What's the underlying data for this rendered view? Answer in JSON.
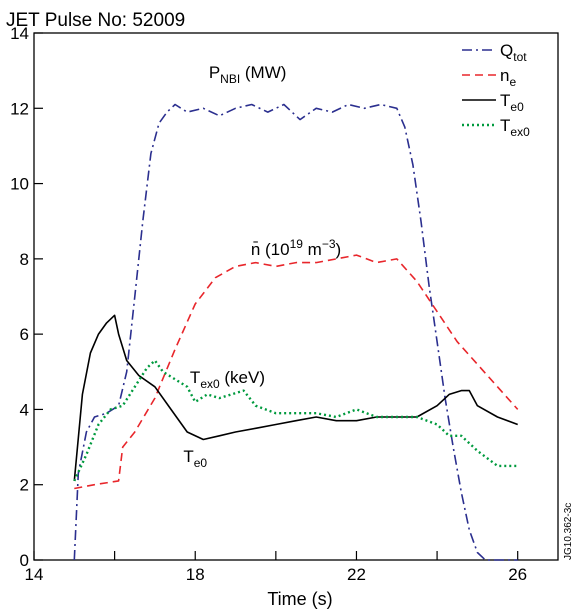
{
  "chart_data": {
    "type": "line",
    "title": "JET Pulse No: 52009",
    "xlabel": "Time (s)",
    "ylabel": "",
    "xlim": [
      14,
      27
    ],
    "ylim": [
      0,
      14
    ],
    "x_ticks": [
      14,
      18,
      22,
      26
    ],
    "x_minor_ticks": [
      16,
      20,
      24
    ],
    "y_ticks": [
      0,
      2,
      4,
      6,
      8,
      10,
      12,
      14
    ],
    "grid": false,
    "legend_position": "top-right",
    "figure_code": "JG10.362-3c",
    "legend": [
      {
        "main": "Q",
        "sub": "tot",
        "color": "#2b2f8f",
        "dash": "dashdot"
      },
      {
        "main": "n",
        "sub": "e",
        "color": "#e8262b",
        "dash": "dashed"
      },
      {
        "main": "T",
        "sub": "e0",
        "color": "#000000",
        "dash": "solid"
      },
      {
        "main": "T",
        "sub": "ex0",
        "color": "#009a3e",
        "dash": "dotted"
      }
    ],
    "annotations": [
      {
        "main": "P",
        "sub": "NBI",
        "rest": " (MW)",
        "x": 19.3,
        "y": 12.8
      },
      {
        "main": "n̄",
        "sup": "19",
        "pre": " (10",
        "rest": " m",
        "sup2": "−3",
        "end": ")",
        "x": 20.5,
        "y": 8.1
      },
      {
        "main": "T",
        "sub": "ex0",
        "rest": " (keV)",
        "x": 18.8,
        "y": 4.7
      },
      {
        "main": "T",
        "sub": "e0",
        "rest": "",
        "x": 18.0,
        "y": 2.6
      }
    ],
    "series": [
      {
        "name": "Qtot",
        "color": "#2b2f8f",
        "dash": "dashdot",
        "x": [
          15.0,
          15.1,
          15.3,
          15.5,
          15.8,
          16.1,
          16.3,
          16.5,
          16.7,
          16.9,
          17.1,
          17.3,
          17.5,
          17.8,
          18.2,
          18.6,
          19.0,
          19.4,
          19.8,
          20.2,
          20.6,
          21.0,
          21.4,
          21.8,
          22.2,
          22.6,
          23.0,
          23.2,
          23.4,
          23.6,
          23.8,
          24.0,
          24.2,
          24.4,
          24.6,
          24.8,
          25.0,
          25.2,
          26.0
        ],
        "y": [
          0.0,
          2.3,
          3.4,
          3.8,
          3.9,
          4.1,
          5.0,
          7.0,
          9.0,
          10.8,
          11.6,
          11.9,
          12.1,
          11.9,
          12.0,
          11.8,
          12.0,
          12.1,
          11.9,
          12.1,
          11.7,
          12.0,
          11.9,
          12.1,
          12.0,
          12.1,
          12.0,
          11.5,
          10.5,
          9.0,
          7.3,
          5.8,
          4.3,
          3.0,
          1.8,
          0.8,
          0.2,
          0.0,
          0.0
        ]
      },
      {
        "name": "ne",
        "color": "#e8262b",
        "dash": "dashed",
        "x": [
          15.0,
          15.5,
          16.1,
          16.2,
          16.5,
          17.0,
          17.5,
          18.0,
          18.5,
          19.0,
          19.5,
          20.0,
          20.5,
          21.0,
          21.5,
          22.0,
          22.5,
          23.0,
          23.5,
          24.0,
          24.5,
          25.0,
          25.5,
          26.0
        ],
        "y": [
          1.9,
          2.0,
          2.1,
          3.0,
          3.4,
          4.3,
          5.6,
          6.8,
          7.5,
          7.8,
          7.9,
          7.8,
          7.9,
          7.9,
          8.0,
          8.1,
          7.9,
          8.0,
          7.4,
          6.6,
          5.8,
          5.2,
          4.6,
          4.0
        ]
      },
      {
        "name": "Te0",
        "color": "#000000",
        "dash": "solid",
        "x": [
          15.0,
          15.2,
          15.4,
          15.6,
          15.8,
          16.0,
          16.1,
          16.3,
          16.6,
          17.0,
          17.4,
          17.8,
          18.2,
          18.6,
          19.0,
          19.5,
          20.0,
          20.5,
          21.0,
          21.5,
          22.0,
          22.5,
          23.0,
          23.5,
          24.0,
          24.3,
          24.6,
          24.8,
          25.0,
          25.5,
          26.0
        ],
        "y": [
          2.1,
          4.4,
          5.5,
          6.0,
          6.3,
          6.5,
          6.0,
          5.3,
          4.9,
          4.6,
          4.0,
          3.4,
          3.2,
          3.3,
          3.4,
          3.5,
          3.6,
          3.7,
          3.8,
          3.7,
          3.7,
          3.8,
          3.8,
          3.8,
          4.1,
          4.4,
          4.5,
          4.5,
          4.1,
          3.8,
          3.6
        ]
      },
      {
        "name": "Tex0",
        "color": "#009a3e",
        "dash": "dotted",
        "x": [
          15.0,
          15.3,
          15.6,
          15.9,
          16.2,
          16.5,
          16.8,
          17.0,
          17.2,
          17.5,
          17.8,
          18.0,
          18.3,
          18.6,
          18.9,
          19.2,
          19.5,
          20.0,
          20.5,
          21.0,
          21.5,
          22.0,
          22.5,
          23.0,
          23.5,
          24.0,
          24.3,
          24.6,
          25.0,
          25.5,
          26.0
        ],
        "y": [
          2.1,
          2.8,
          3.6,
          4.0,
          4.1,
          4.6,
          5.1,
          5.3,
          5.0,
          4.8,
          4.6,
          4.2,
          4.4,
          4.3,
          4.4,
          4.5,
          4.1,
          3.9,
          3.9,
          3.9,
          3.8,
          4.0,
          3.8,
          3.8,
          3.8,
          3.6,
          3.3,
          3.3,
          2.9,
          2.5,
          2.5
        ]
      }
    ]
  }
}
